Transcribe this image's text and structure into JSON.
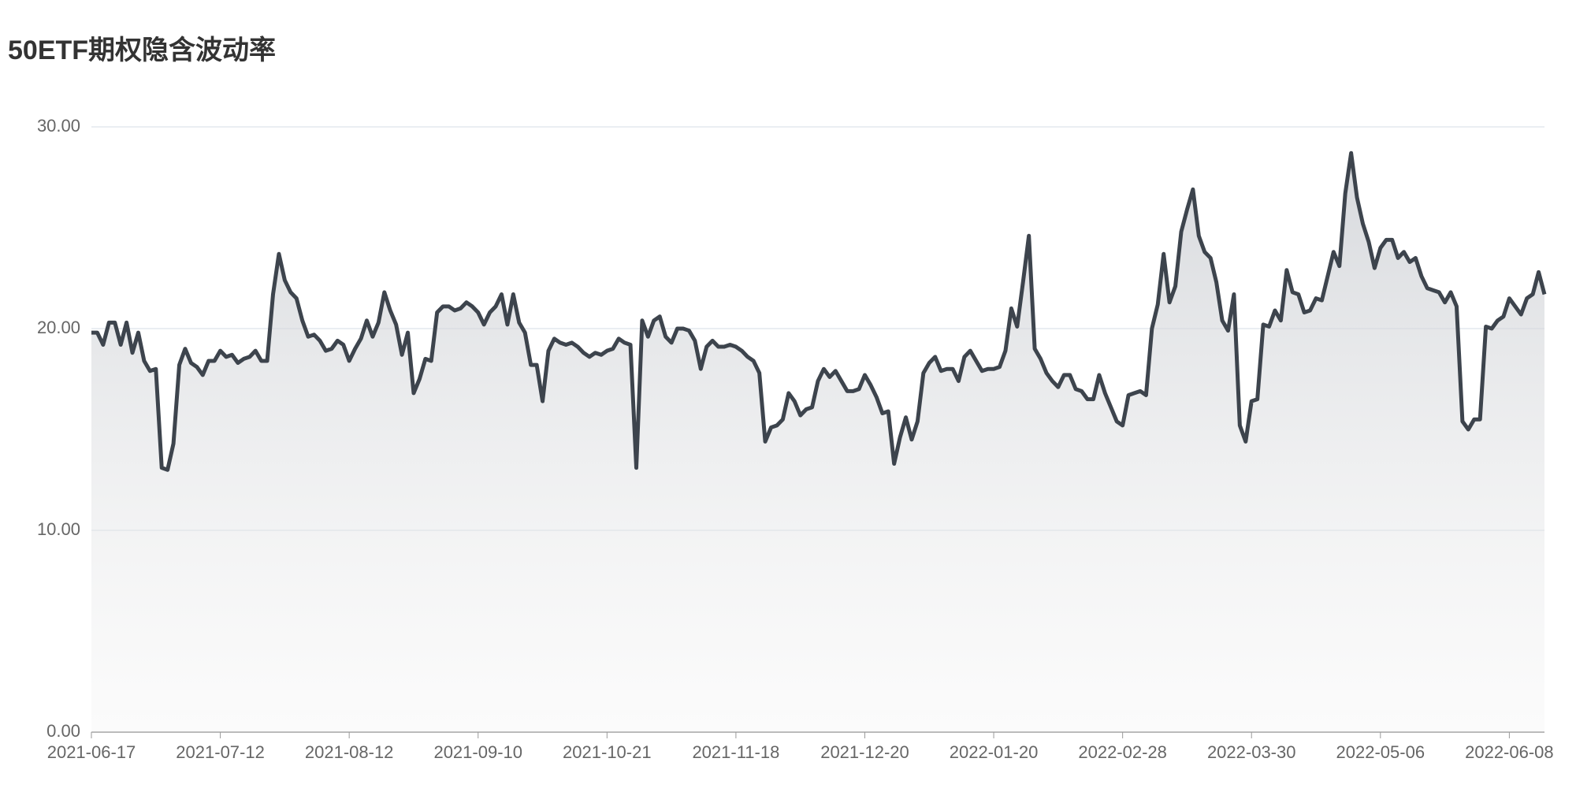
{
  "chart_data": {
    "type": "area-line",
    "title": "50ETF期权隐含波动率",
    "categories": [
      "2021-06-17",
      null,
      null,
      null,
      null,
      null,
      null,
      null,
      null,
      null,
      null,
      null,
      null,
      null,
      null,
      null,
      null,
      null,
      null,
      null,
      null,
      null,
      "2021-07-12",
      null,
      null,
      null,
      null,
      null,
      null,
      null,
      null,
      null,
      null,
      null,
      null,
      null,
      null,
      null,
      null,
      null,
      null,
      null,
      null,
      null,
      "2021-08-12",
      null,
      null,
      null,
      null,
      null,
      null,
      null,
      null,
      null,
      null,
      null,
      null,
      null,
      null,
      null,
      null,
      null,
      null,
      null,
      null,
      null,
      "2021-09-10",
      null,
      null,
      null,
      null,
      null,
      null,
      null,
      null,
      null,
      null,
      null,
      null,
      null,
      null,
      null,
      null,
      null,
      null,
      null,
      null,
      null,
      "2021-10-21",
      null,
      null,
      null,
      null,
      null,
      null,
      null,
      null,
      null,
      null,
      null,
      null,
      null,
      null,
      null,
      null,
      null,
      null,
      null,
      null,
      null,
      "2021-11-18",
      null,
      null,
      null,
      null,
      null,
      null,
      null,
      null,
      null,
      null,
      null,
      null,
      null,
      null,
      null,
      null,
      null,
      null,
      null,
      null,
      null,
      "2021-12-20",
      null,
      null,
      null,
      null,
      null,
      null,
      null,
      null,
      null,
      null,
      null,
      null,
      null,
      null,
      null,
      null,
      null,
      null,
      null,
      null,
      null,
      "2022-01-20",
      null,
      null,
      null,
      null,
      null,
      null,
      null,
      null,
      null,
      null,
      null,
      null,
      null,
      null,
      null,
      null,
      null,
      null,
      null,
      null,
      null,
      "2022-02-28",
      null,
      null,
      null,
      null,
      null,
      null,
      null,
      null,
      null,
      null,
      null,
      null,
      null,
      null,
      null,
      null,
      null,
      null,
      null,
      null,
      null,
      "2022-03-30",
      null,
      null,
      null,
      null,
      null,
      null,
      null,
      null,
      null,
      null,
      null,
      null,
      null,
      null,
      null,
      null,
      null,
      null,
      null,
      null,
      null,
      "2022-05-06",
      null,
      null,
      null,
      null,
      null,
      null,
      null,
      null,
      null,
      null,
      null,
      null,
      null,
      null,
      null,
      null,
      null,
      null,
      null,
      null,
      null,
      "2022-06-08",
      null,
      null,
      null,
      null,
      null,
      null
    ],
    "values": [
      19.8,
      19.8,
      19.2,
      20.3,
      20.3,
      19.2,
      20.3,
      18.8,
      19.8,
      18.4,
      17.9,
      18.0,
      13.1,
      13.0,
      14.3,
      18.2,
      19.0,
      18.3,
      18.1,
      17.7,
      18.4,
      18.4,
      18.9,
      18.6,
      18.7,
      18.3,
      18.5,
      18.6,
      18.9,
      18.4,
      18.4,
      21.7,
      23.7,
      22.4,
      21.8,
      21.5,
      20.4,
      19.6,
      19.7,
      19.4,
      18.9,
      19.0,
      19.4,
      19.2,
      18.4,
      19.0,
      19.5,
      20.4,
      19.6,
      20.3,
      21.8,
      20.9,
      20.2,
      18.7,
      19.8,
      16.8,
      17.5,
      18.5,
      18.4,
      20.8,
      21.1,
      21.1,
      20.9,
      21.0,
      21.3,
      21.1,
      20.8,
      20.2,
      20.8,
      21.1,
      21.7,
      20.2,
      21.7,
      20.3,
      19.8,
      18.2,
      18.2,
      16.4,
      18.9,
      19.5,
      19.3,
      19.2,
      19.3,
      19.1,
      18.8,
      18.6,
      18.8,
      18.7,
      18.9,
      19.0,
      19.5,
      19.3,
      19.2,
      13.1,
      20.4,
      19.6,
      20.4,
      20.6,
      19.6,
      19.3,
      20.0,
      20.0,
      19.9,
      19.4,
      18.0,
      19.1,
      19.4,
      19.1,
      19.1,
      19.2,
      19.1,
      18.9,
      18.6,
      18.4,
      17.8,
      14.4,
      15.1,
      15.2,
      15.5,
      16.8,
      16.4,
      15.7,
      16.0,
      16.1,
      17.4,
      18.0,
      17.6,
      17.9,
      17.4,
      16.9,
      16.9,
      17.0,
      17.7,
      17.2,
      16.6,
      15.8,
      15.9,
      13.3,
      14.6,
      15.6,
      14.5,
      15.4,
      17.8,
      18.3,
      18.6,
      17.9,
      18.0,
      18.0,
      17.4,
      18.6,
      18.9,
      18.4,
      17.9,
      18.0,
      18.0,
      18.1,
      18.9,
      21.0,
      20.1,
      22.3,
      24.6,
      19.0,
      18.5,
      17.8,
      17.4,
      17.1,
      17.7,
      17.7,
      17.0,
      16.9,
      16.5,
      16.5,
      17.7,
      16.8,
      16.1,
      15.4,
      15.2,
      16.7,
      16.8,
      16.9,
      16.7,
      20.0,
      21.2,
      23.7,
      21.3,
      22.1,
      24.8,
      25.9,
      26.9,
      24.6,
      23.8,
      23.5,
      22.3,
      20.4,
      19.9,
      21.7,
      15.2,
      14.4,
      16.4,
      16.5,
      20.2,
      20.1,
      20.9,
      20.4,
      22.9,
      21.8,
      21.7,
      20.8,
      20.9,
      21.5,
      21.4,
      22.6,
      23.8,
      23.1,
      26.7,
      28.7,
      26.5,
      25.2,
      24.3,
      23.0,
      24.0,
      24.4,
      24.4,
      23.5,
      23.8,
      23.3,
      23.5,
      22.6,
      22.0,
      21.9,
      21.8,
      21.3,
      21.8,
      21.1,
      15.4,
      15.0,
      15.5,
      15.5,
      20.1,
      20.0,
      20.4,
      20.6,
      21.5,
      21.1,
      20.7,
      21.5,
      21.7,
      22.8,
      21.7
    ],
    "color": "#3d444d",
    "ylim": [
      0,
      30
    ],
    "yticks": [
      {
        "value": 0,
        "label": "0.00"
      },
      {
        "value": 10,
        "label": "10.00"
      },
      {
        "value": 20,
        "label": "20.00"
      },
      {
        "value": 30,
        "label": "30.00"
      }
    ],
    "grid": true
  }
}
